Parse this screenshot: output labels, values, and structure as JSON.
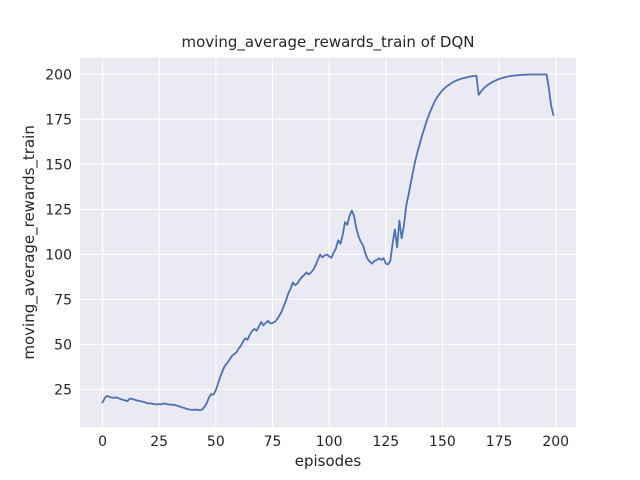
{
  "figure": {
    "background": "#ffffff"
  },
  "chart_data": {
    "type": "line",
    "title": "moving_average_rewards_train of DQN",
    "xlabel": "episodes",
    "ylabel": "moving_average_rewards_train",
    "x_ticks": [
      0,
      25,
      50,
      75,
      100,
      125,
      150,
      175,
      200
    ],
    "y_ticks": [
      25,
      50,
      75,
      100,
      125,
      150,
      175,
      200
    ],
    "xlim": [
      -9.95,
      208.95
    ],
    "ylim": [
      4.0,
      209.3
    ],
    "grid": true,
    "legend": null,
    "style": {
      "axes_bg": "#EAEAF2",
      "grid_color": "#FFFFFF",
      "line_color": "#4C72B0",
      "text_color": "#262626",
      "line_width": 1.8
    },
    "series": [
      {
        "name": "moving_average_rewards_train",
        "points": [
          [
            0,
            17.7
          ],
          [
            1,
            20.3
          ],
          [
            2,
            21.4
          ],
          [
            3,
            20.8
          ],
          [
            4,
            20.5
          ],
          [
            5,
            20.3
          ],
          [
            6,
            20.6
          ],
          [
            7,
            20.1
          ],
          [
            8,
            19.6
          ],
          [
            9,
            19.2
          ],
          [
            10,
            18.9
          ],
          [
            11,
            18.5
          ],
          [
            12,
            19.9
          ],
          [
            13,
            19.7
          ],
          [
            14,
            19.3
          ],
          [
            15,
            18.9
          ],
          [
            16,
            18.6
          ],
          [
            17,
            18.4
          ],
          [
            18,
            18.1
          ],
          [
            19,
            17.7
          ],
          [
            20,
            17.2
          ],
          [
            21,
            17.3
          ],
          [
            22,
            17.0
          ],
          [
            23,
            16.8
          ],
          [
            24,
            16.6
          ],
          [
            25,
            16.9
          ],
          [
            26,
            16.7
          ],
          [
            27,
            17.2
          ],
          [
            28,
            17.0
          ],
          [
            29,
            16.7
          ],
          [
            30,
            16.5
          ],
          [
            31,
            16.5
          ],
          [
            32,
            16.3
          ],
          [
            33,
            15.9
          ],
          [
            34,
            15.5
          ],
          [
            35,
            15.1
          ],
          [
            36,
            14.7
          ],
          [
            37,
            14.2
          ],
          [
            38,
            13.9
          ],
          [
            39,
            13.7
          ],
          [
            40,
            13.6
          ],
          [
            41,
            13.8
          ],
          [
            42,
            13.6
          ],
          [
            43,
            13.4
          ],
          [
            44,
            13.9
          ],
          [
            45,
            15.3
          ],
          [
            46,
            17.4
          ],
          [
            47,
            20.6
          ],
          [
            48,
            22.4
          ],
          [
            49,
            22.1
          ],
          [
            50,
            24.6
          ],
          [
            51,
            28.4
          ],
          [
            52,
            32.1
          ],
          [
            53,
            35.4
          ],
          [
            54,
            38.1
          ],
          [
            55,
            39.6
          ],
          [
            56,
            41.4
          ],
          [
            57,
            43.4
          ],
          [
            58,
            44.6
          ],
          [
            59,
            45.4
          ],
          [
            60,
            47.6
          ],
          [
            61,
            49.1
          ],
          [
            62,
            51.6
          ],
          [
            63,
            53.4
          ],
          [
            64,
            52.6
          ],
          [
            65,
            55.4
          ],
          [
            66,
            57.4
          ],
          [
            67,
            58.6
          ],
          [
            68,
            57.6
          ],
          [
            69,
            59.9
          ],
          [
            70,
            62.4
          ],
          [
            71,
            60.6
          ],
          [
            72,
            61.9
          ],
          [
            73,
            63.1
          ],
          [
            74,
            61.6
          ],
          [
            75,
            61.9
          ],
          [
            76,
            62.4
          ],
          [
            77,
            63.9
          ],
          [
            78,
            65.9
          ],
          [
            79,
            68.1
          ],
          [
            80,
            71.4
          ],
          [
            81,
            74.4
          ],
          [
            82,
            78.4
          ],
          [
            83,
            80.9
          ],
          [
            84,
            84.4
          ],
          [
            85,
            82.9
          ],
          [
            86,
            83.9
          ],
          [
            87,
            85.9
          ],
          [
            88,
            87.4
          ],
          [
            89,
            88.6
          ],
          [
            90,
            89.9
          ],
          [
            91,
            88.9
          ],
          [
            92,
            89.9
          ],
          [
            93,
            91.4
          ],
          [
            94,
            93.9
          ],
          [
            95,
            96.9
          ],
          [
            96,
            99.9
          ],
          [
            97,
            98.4
          ],
          [
            98,
            99.4
          ],
          [
            99,
            99.9
          ],
          [
            100,
            98.9
          ],
          [
            101,
            98.1
          ],
          [
            102,
            100.9
          ],
          [
            103,
            103.4
          ],
          [
            104,
            107.8
          ],
          [
            105,
            105.9
          ],
          [
            106,
            110.9
          ],
          [
            107,
            117.9
          ],
          [
            108,
            116.4
          ],
          [
            109,
            121.4
          ],
          [
            110,
            124.4
          ],
          [
            111,
            121.4
          ],
          [
            112,
            114.4
          ],
          [
            113,
            109.9
          ],
          [
            114,
            106.9
          ],
          [
            115,
            104.9
          ],
          [
            116,
            100.4
          ],
          [
            117,
            97.4
          ],
          [
            118,
            95.9
          ],
          [
            119,
            94.9
          ],
          [
            120,
            96.4
          ],
          [
            121,
            96.9
          ],
          [
            122,
            97.9
          ],
          [
            123,
            96.9
          ],
          [
            124,
            97.9
          ],
          [
            125,
            94.9
          ],
          [
            126,
            94.4
          ],
          [
            127,
            96.4
          ],
          [
            128,
            105.9
          ],
          [
            129,
            113.9
          ],
          [
            130,
            103.9
          ],
          [
            131,
            118.9
          ],
          [
            132,
            108.9
          ],
          [
            133,
            115.9
          ],
          [
            134,
            126.9
          ],
          [
            135,
            132.9
          ],
          [
            136,
            139.4
          ],
          [
            137,
            145.9
          ],
          [
            138,
            151.9
          ],
          [
            139,
            156.9
          ],
          [
            140,
            161.4
          ],
          [
            141,
            165.9
          ],
          [
            142,
            169.9
          ],
          [
            143,
            173.9
          ],
          [
            144,
            177.4
          ],
          [
            145,
            180.4
          ],
          [
            146,
            183.4
          ],
          [
            147,
            185.9
          ],
          [
            148,
            187.9
          ],
          [
            149,
            189.6
          ],
          [
            150,
            191.1
          ],
          [
            151,
            192.4
          ],
          [
            152,
            193.4
          ],
          [
            153,
            194.3
          ],
          [
            154,
            195.1
          ],
          [
            155,
            195.9
          ],
          [
            156,
            196.5
          ],
          [
            157,
            197.0
          ],
          [
            158,
            197.4
          ],
          [
            159,
            197.8
          ],
          [
            160,
            198.1
          ],
          [
            161,
            198.4
          ],
          [
            162,
            198.7
          ],
          [
            163,
            198.9
          ],
          [
            164,
            199.1
          ],
          [
            165,
            199.3
          ],
          [
            166,
            188.6
          ],
          [
            167,
            190.4
          ],
          [
            168,
            191.9
          ],
          [
            169,
            193.1
          ],
          [
            170,
            194.1
          ],
          [
            171,
            194.9
          ],
          [
            172,
            195.7
          ],
          [
            173,
            196.3
          ],
          [
            174,
            196.9
          ],
          [
            175,
            197.4
          ],
          [
            176,
            197.8
          ],
          [
            177,
            198.2
          ],
          [
            178,
            198.5
          ],
          [
            179,
            198.8
          ],
          [
            180,
            199.0
          ],
          [
            181,
            199.2
          ],
          [
            182,
            199.4
          ],
          [
            183,
            199.5
          ],
          [
            184,
            199.6
          ],
          [
            185,
            199.7
          ],
          [
            186,
            199.8
          ],
          [
            187,
            199.8
          ],
          [
            188,
            199.9
          ],
          [
            189,
            199.9
          ],
          [
            190,
            199.9
          ],
          [
            191,
            199.9
          ],
          [
            192,
            199.9
          ],
          [
            193,
            199.9
          ],
          [
            194,
            199.9
          ],
          [
            195,
            199.9
          ],
          [
            196,
            199.9
          ],
          [
            197,
            191.9
          ],
          [
            198,
            182.4
          ],
          [
            199,
            177.4
          ]
        ]
      }
    ]
  }
}
